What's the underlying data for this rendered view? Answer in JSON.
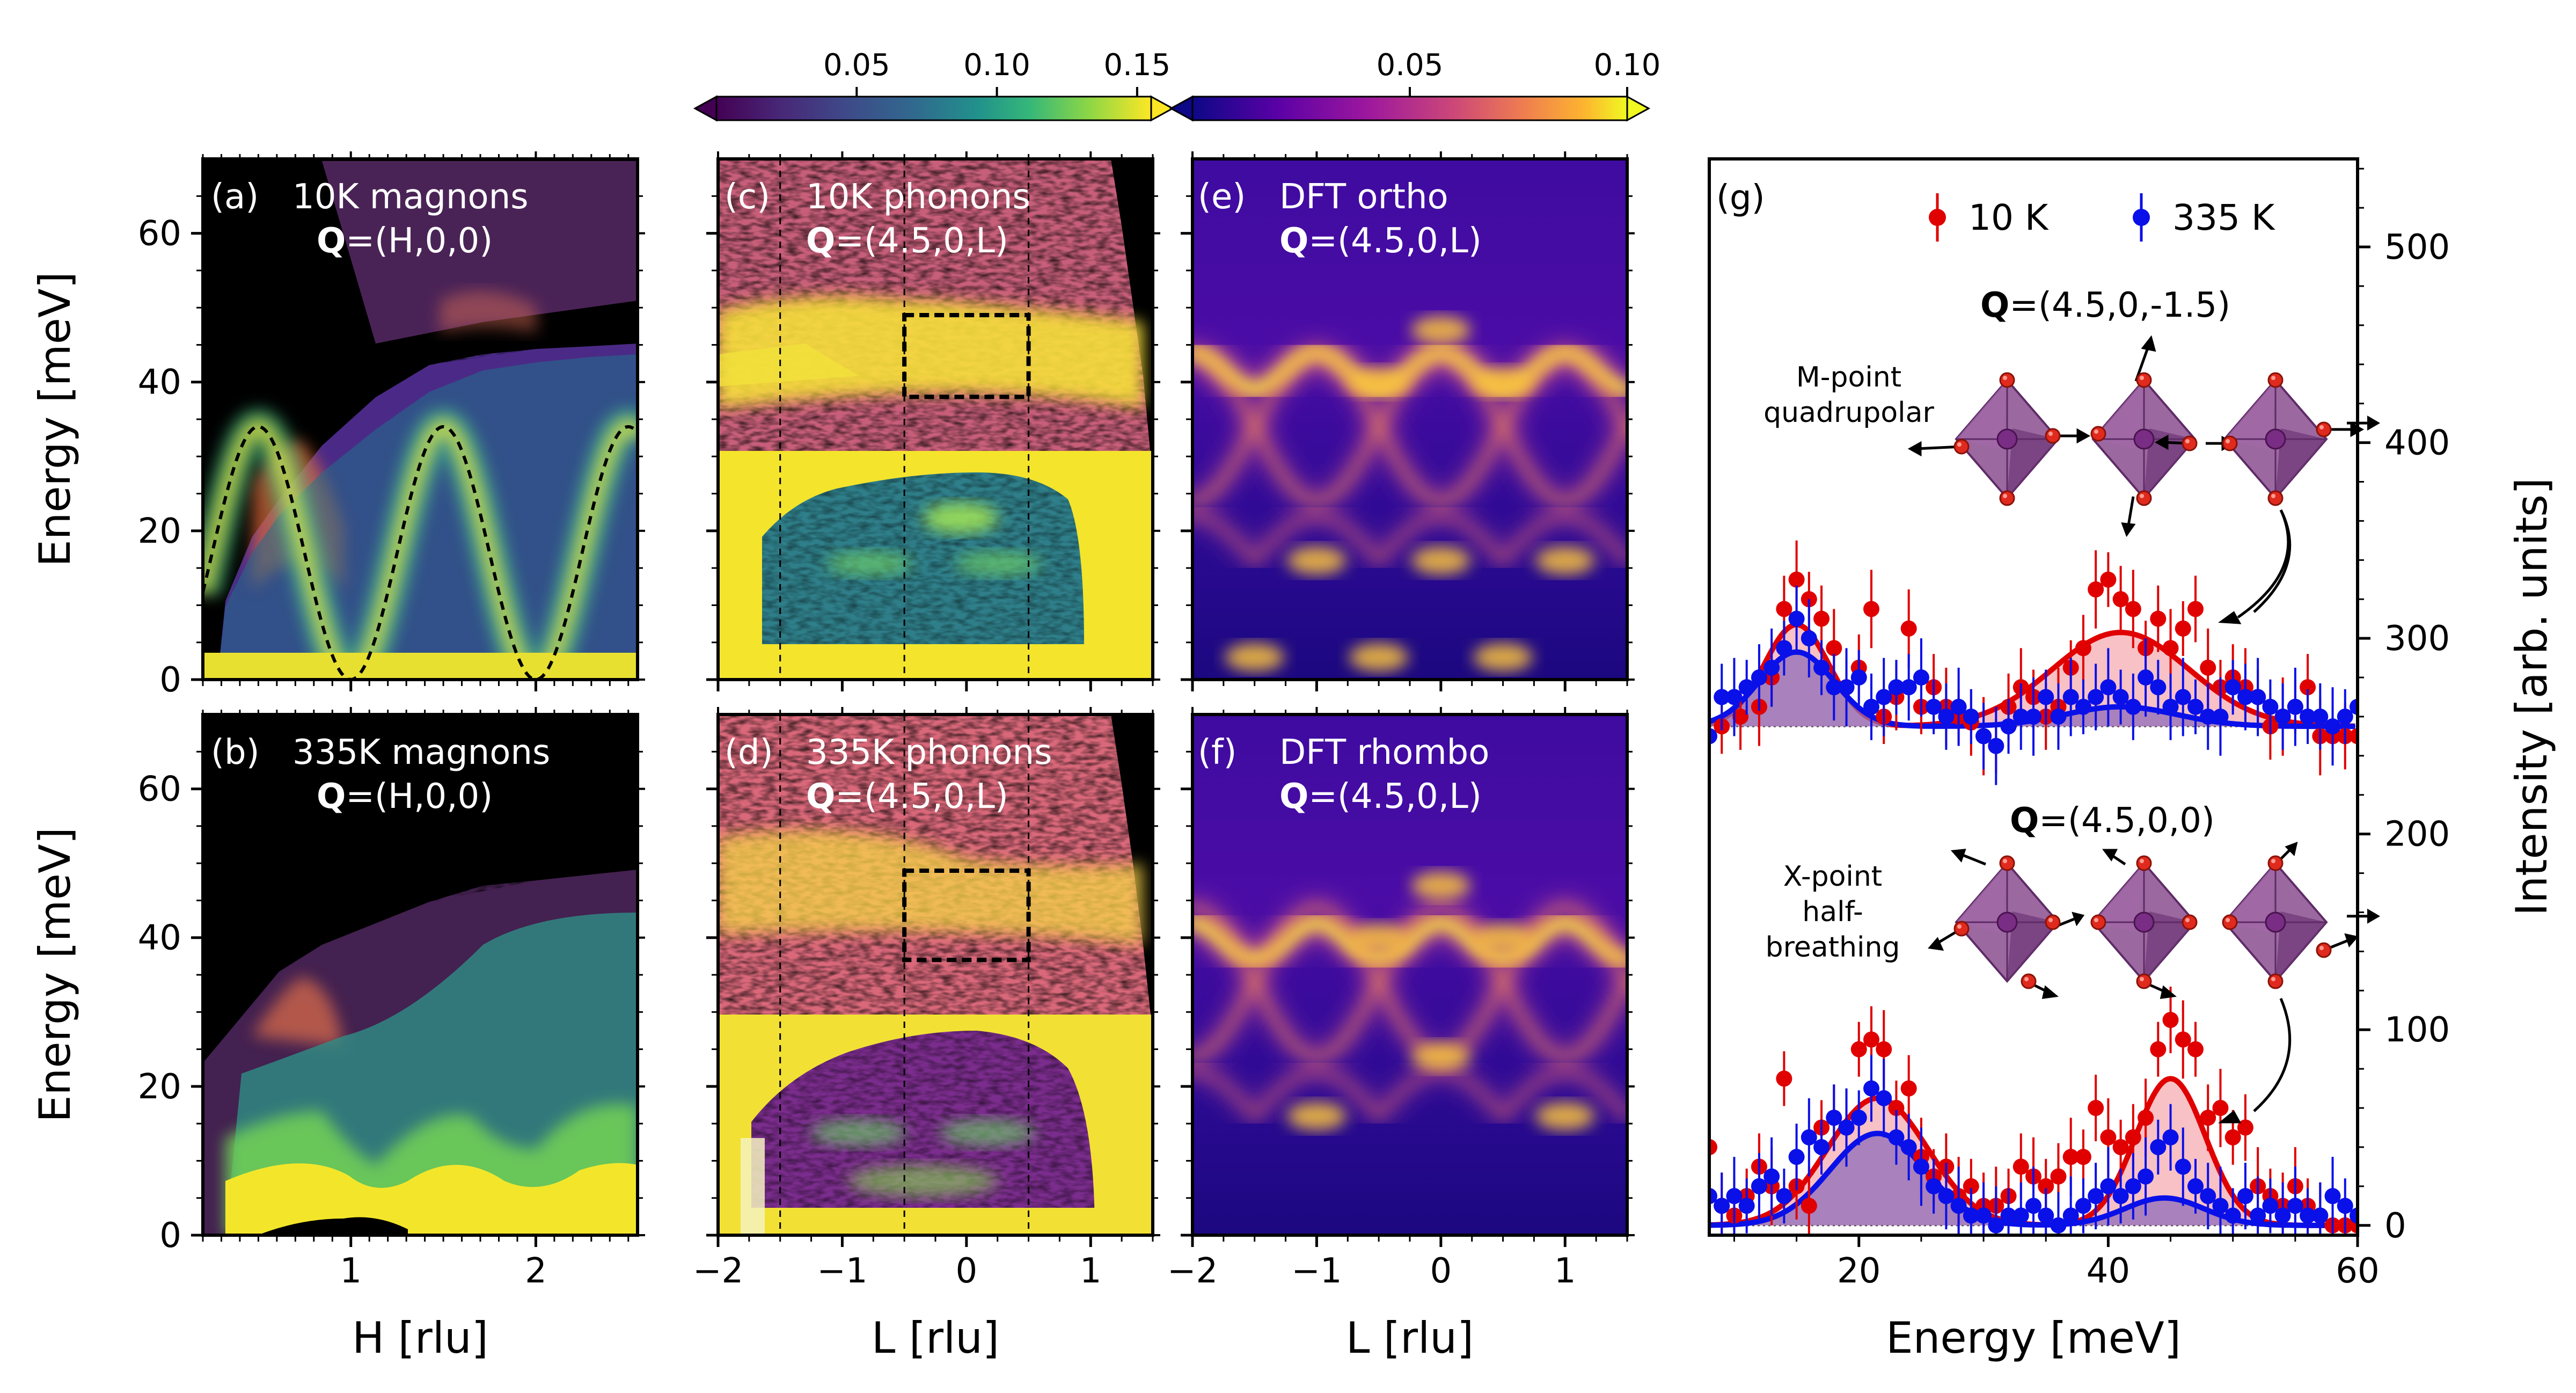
{
  "colorbars": [
    {
      "name": "colorbar-viridis",
      "ticks": [
        "0.05",
        "0.10",
        "0.15"
      ],
      "tick_values": [
        0.05,
        0.1,
        0.15
      ],
      "range": [
        0.0,
        0.155
      ],
      "colormap": "viridis"
    },
    {
      "name": "colorbar-plasma",
      "ticks": [
        "0.05",
        "0.10"
      ],
      "tick_values": [
        0.05,
        0.1
      ],
      "range": [
        0.0,
        0.1
      ],
      "colormap": "plasma"
    }
  ],
  "labels": {
    "ylabel_energy": "Energy [meV]",
    "xlabel_h": "H [rlu]",
    "xlabel_l": "L [rlu]",
    "xlabel_energy": "Energy [meV]",
    "ylabel_intensity": "Intensity [arb. units]",
    "yticks_energy": [
      "0",
      "20",
      "40",
      "60"
    ],
    "xticks_h": [
      "1",
      "2"
    ],
    "xticks_l": [
      "−2",
      "−1",
      "0",
      "1"
    ]
  },
  "panels": {
    "a": {
      "tag": "(a)",
      "title": "10K magnons",
      "q_bold": "Q",
      "q_rest": "=(H,0,0)"
    },
    "b": {
      "tag": "(b)",
      "title": "335K magnons",
      "q_bold": "Q",
      "q_rest": "=(H,0,0)"
    },
    "c": {
      "tag": "(c)",
      "title": "10K phonons",
      "q_bold": "Q",
      "q_rest": "=(4.5,0,L)"
    },
    "d": {
      "tag": "(d)",
      "title": "335K phonons",
      "q_bold": "Q",
      "q_rest": "=(4.5,0,L)"
    },
    "e": {
      "tag": "(e)",
      "title": "DFT ortho",
      "q_bold": "Q",
      "q_rest": "=(4.5,0,L)"
    },
    "f": {
      "tag": "(f)",
      "title": "DFT rhombo",
      "q_bold": "Q",
      "q_rest": "=(4.5,0,L)"
    },
    "g": {
      "tag": "(g)",
      "legend": [
        "10 K",
        "335 K"
      ],
      "upper_q_bold": "Q",
      "upper_q_rest": "=(4.5,0,-1.5)",
      "lower_q_bold": "Q",
      "lower_q_rest": "=(4.5,0,0)",
      "upper_mode": [
        "M-point",
        "quadrupolar"
      ],
      "lower_mode": [
        "X-point",
        "half-",
        "breathing"
      ],
      "yticks": [
        "0",
        "100",
        "200",
        "300",
        "400",
        "500"
      ],
      "xticks": [
        "20",
        "40",
        "60"
      ]
    }
  },
  "chart_data": [
    {
      "name": "panel-a",
      "type": "heatmap",
      "title": "10K magnons",
      "xlabel": "H [rlu]",
      "ylabel": "Energy [meV]",
      "xlim": [
        0.2,
        2.55
      ],
      "ylim": [
        0,
        70
      ],
      "xticks": [
        1,
        2
      ],
      "yticks": [
        0,
        20,
        40,
        60
      ],
      "overlay": "dashed dispersion E = 34*sin^2(pi*(H-1))"
    },
    {
      "name": "panel-b",
      "type": "heatmap",
      "title": "335K magnons",
      "xlabel": "H [rlu]",
      "ylabel": "Energy [meV]",
      "xlim": [
        0.2,
        2.55
      ],
      "ylim": [
        0,
        70
      ],
      "xticks": [
        1,
        2
      ],
      "yticks": [
        0,
        20,
        40,
        60
      ]
    },
    {
      "name": "panel-c",
      "type": "heatmap",
      "title": "10K phonons",
      "xlabel": "L [rlu]",
      "ylabel": "Energy [meV]",
      "xlim": [
        -2,
        1.5
      ],
      "ylim": [
        0,
        70
      ],
      "xticks": [
        -2,
        -1,
        0,
        1
      ],
      "vlines": [
        -1.5,
        -0.5,
        0.5
      ],
      "box": {
        "L": [
          -0.5,
          0.5
        ],
        "E": [
          38,
          49
        ]
      }
    },
    {
      "name": "panel-d",
      "type": "heatmap",
      "title": "335K phonons",
      "xlabel": "L [rlu]",
      "ylabel": "Energy [meV]",
      "xlim": [
        -2,
        1.5
      ],
      "ylim": [
        0,
        70
      ],
      "xticks": [
        -2,
        -1,
        0,
        1
      ],
      "vlines": [
        -1.5,
        -0.5,
        0.5
      ],
      "box": {
        "L": [
          -0.5,
          0.5
        ],
        "E": [
          37,
          49
        ]
      }
    },
    {
      "name": "panel-e",
      "type": "heatmap",
      "title": "DFT ortho",
      "xlabel": "L [rlu]",
      "xlim": [
        -2,
        1.5
      ],
      "ylim": [
        0,
        70
      ],
      "xticks": [
        -2,
        -1,
        0,
        1
      ]
    },
    {
      "name": "panel-f",
      "type": "heatmap",
      "title": "DFT rhombo",
      "xlabel": "L [rlu]",
      "xlim": [
        -2,
        1.5
      ],
      "ylim": [
        0,
        70
      ],
      "xticks": [
        -2,
        -1,
        0,
        1
      ]
    },
    {
      "name": "panel-g",
      "type": "scatter",
      "xlabel": "Energy [meV]",
      "ylabel": "Intensity [arb. units]",
      "xlim": [
        8,
        60
      ],
      "ylim": [
        -5,
        545
      ],
      "xticks": [
        20,
        40,
        60
      ],
      "yticks": [
        0,
        100,
        200,
        300,
        400,
        500
      ],
      "legend": [
        "10 K",
        "335 K"
      ],
      "upper_offset": 255,
      "series": [
        {
          "name": "10 K upper Q=(4.5,0,-1.5)",
          "color": "#e00000",
          "offset": 255,
          "x": [
            9,
            10.5,
            12,
            13,
            14,
            15,
            16,
            17,
            18,
            19,
            20,
            21,
            22,
            23,
            24,
            25,
            26,
            27,
            28,
            29,
            30,
            31,
            32,
            33,
            34,
            35,
            36,
            37,
            38,
            39,
            40,
            41,
            42,
            43,
            44,
            45,
            46,
            47,
            48,
            49,
            50,
            51,
            52,
            53,
            54,
            55,
            56,
            57,
            58,
            59,
            60
          ],
          "y": [
            0,
            5,
            10,
            25,
            60,
            75,
            65,
            55,
            40,
            20,
            30,
            60,
            5,
            15,
            50,
            10,
            20,
            10,
            5,
            2,
            -5,
            -10,
            10,
            20,
            15,
            5,
            10,
            30,
            40,
            70,
            75,
            65,
            60,
            40,
            55,
            40,
            50,
            60,
            30,
            20,
            25,
            20,
            15,
            0,
            5,
            10,
            20,
            -5,
            -5,
            -5,
            -5
          ]
        },
        {
          "name": "335 K upper Q=(4.5,0,-1.5)",
          "color": "#0a10e8",
          "offset": 255,
          "x": [
            8,
            9,
            10,
            11,
            12,
            13,
            14,
            15,
            16,
            17,
            18,
            19,
            20,
            21,
            22,
            23,
            24,
            25,
            26,
            27,
            28,
            29,
            30,
            31,
            32,
            33,
            34,
            35,
            36,
            37,
            38,
            39,
            40,
            41,
            42,
            43,
            44,
            45,
            46,
            47,
            48,
            49,
            50,
            51,
            52,
            53,
            54,
            55,
            56,
            57,
            58,
            59,
            60
          ],
          "y": [
            -5,
            15,
            15,
            20,
            25,
            30,
            40,
            55,
            45,
            30,
            20,
            20,
            25,
            10,
            15,
            20,
            20,
            25,
            10,
            5,
            10,
            5,
            -5,
            -10,
            0,
            5,
            5,
            15,
            5,
            15,
            10,
            15,
            20,
            15,
            10,
            25,
            20,
            10,
            15,
            10,
            5,
            5,
            20,
            15,
            15,
            10,
            5,
            10,
            5,
            5,
            0,
            5,
            10
          ]
        },
        {
          "name": "10 K lower Q=(4.5,0,0)",
          "color": "#e00000",
          "offset": 0,
          "x": [
            8,
            9,
            10,
            11,
            12,
            13,
            14,
            15,
            16,
            17,
            18,
            19,
            20,
            21,
            22,
            23,
            24,
            25,
            26,
            27,
            28,
            29,
            30,
            31,
            32,
            33,
            34,
            35,
            36,
            37,
            38,
            39,
            40,
            41,
            42,
            43,
            44,
            45,
            46,
            47,
            48,
            49,
            50,
            51,
            52,
            53,
            54,
            55,
            56,
            57,
            58,
            59,
            60
          ],
          "y": [
            40,
            10,
            5,
            15,
            30,
            20,
            75,
            20,
            10,
            50,
            55,
            50,
            90,
            95,
            90,
            60,
            70,
            35,
            25,
            30,
            15,
            20,
            10,
            10,
            15,
            30,
            25,
            20,
            25,
            35,
            35,
            60,
            45,
            40,
            45,
            55,
            90,
            105,
            95,
            90,
            55,
            60,
            45,
            50,
            20,
            15,
            10,
            20,
            10,
            5,
            0,
            0,
            0
          ]
        },
        {
          "name": "335 K lower Q=(4.5,0,0)",
          "color": "#0a10e8",
          "offset": 0,
          "x": [
            8,
            9,
            10,
            11,
            12,
            13,
            14,
            15,
            16,
            17,
            18,
            19,
            20,
            21,
            22,
            23,
            24,
            25,
            26,
            27,
            28,
            29,
            30,
            31,
            32,
            33,
            34,
            35,
            36,
            37,
            38,
            39,
            40,
            41,
            42,
            43,
            44,
            45,
            46,
            47,
            48,
            49,
            50,
            51,
            52,
            53,
            54,
            55,
            56,
            57,
            58,
            59,
            60
          ],
          "y": [
            15,
            10,
            15,
            10,
            20,
            25,
            15,
            35,
            45,
            40,
            55,
            50,
            55,
            70,
            65,
            45,
            40,
            30,
            20,
            15,
            10,
            5,
            5,
            0,
            5,
            5,
            10,
            5,
            0,
            5,
            10,
            15,
            20,
            15,
            20,
            25,
            40,
            45,
            30,
            20,
            15,
            10,
            5,
            15,
            5,
            10,
            5,
            10,
            5,
            5,
            15,
            10,
            5
          ]
        }
      ],
      "fits": [
        {
          "name": "fit 10 K upper",
          "color": "#e00000",
          "offset": 255,
          "peaks": [
            [
              15,
              52,
              2.6
            ],
            [
              41,
              48,
              5.5
            ]
          ]
        },
        {
          "name": "fit 335 K upper",
          "color": "#0a10e8",
          "offset": 255,
          "peaks": [
            [
              15,
              38,
              3.0
            ],
            [
              41,
              10,
              4.5
            ]
          ]
        },
        {
          "name": "fit 10 K lower",
          "color": "#e00000",
          "offset": 0,
          "peaks": [
            [
              21.5,
              65,
              4.0
            ],
            [
              45,
              75,
              2.8
            ]
          ]
        },
        {
          "name": "fit 335 K lower",
          "color": "#0a10e8",
          "offset": 0,
          "peaks": [
            [
              21.5,
              47,
              3.8
            ],
            [
              44.5,
              14,
              3.2
            ]
          ]
        }
      ]
    }
  ]
}
